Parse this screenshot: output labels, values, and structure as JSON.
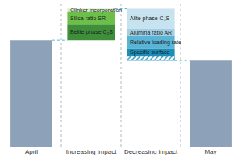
{
  "chart_data": {
    "type": "waterfall",
    "categories": [
      "April",
      "Increasing impact",
      "Decreasing impact",
      "May"
    ],
    "segments": [
      [
        {
          "value": 100,
          "color": "#8da2b8"
        }
      ],
      [
        {
          "name": "Belite phase C₂S",
          "value": 15,
          "color": "#3f8f3a"
        },
        {
          "name": "Silica ratio SR",
          "value": 12,
          "color": "#6cc04a"
        },
        {
          "name": "Clinker incorporation",
          "value": 3,
          "color": "#d4ebc6"
        }
      ],
      [
        {
          "name": "Alite phase C₃S",
          "value": -19,
          "color": "#c8e3f0"
        },
        {
          "name": "Alumina ratio AR",
          "value": -7,
          "color": "#a3cfe4"
        },
        {
          "name": "Relative loading rate",
          "value": -12,
          "color": "#5ab4d6"
        },
        {
          "name": "Specific surface",
          "value": -7,
          "color": "#1b8fb8"
        },
        {
          "value": -4,
          "color": "#ffffff"
        }
      ],
      [
        {
          "value": 81,
          "color": "#8da2b8"
        }
      ]
    ],
    "ylim": [
      0,
      135
    ],
    "tick_labels": "x",
    "grid": false
  }
}
